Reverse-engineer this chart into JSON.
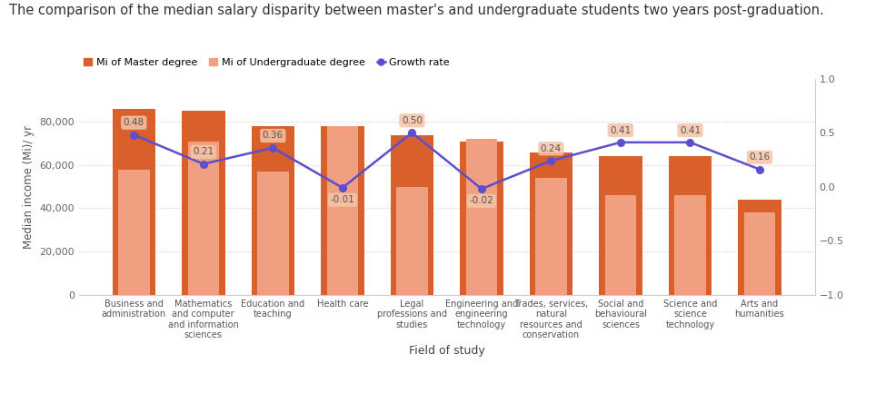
{
  "title": "The comparison of the median salary disparity between master's and undergraduate students two years post-graduation.",
  "categories": [
    "Business and\nadministration",
    "Mathematics\nand computer\nand information\nsciences",
    "Education and\nteaching",
    "Health care",
    "Legal\nprofessions and\nstudies",
    "Engineering and\nengineering\ntechnology",
    "Trades, services,\nnatural\nresources and\nconservation",
    "Social and\nbehavioural\nsciences",
    "Science and\nscience\ntechnology",
    "Arts and\nhumanities"
  ],
  "master_values": [
    86000,
    85000,
    78000,
    78000,
    74000,
    71000,
    66000,
    64000,
    64000,
    44000
  ],
  "undergrad_values": [
    58000,
    71000,
    57000,
    78000,
    50000,
    72000,
    54000,
    46000,
    46000,
    38000
  ],
  "growth_rates": [
    0.48,
    0.21,
    0.36,
    -0.01,
    0.5,
    -0.02,
    0.24,
    0.41,
    0.41,
    0.16
  ],
  "master_color": "#d95f2b",
  "undergrad_color": "#f0a080",
  "growth_color": "#5b4fcf",
  "xlabel": "Field of study",
  "ylabel": "Median income (Mi)/ yr",
  "ylim_left": [
    0,
    100000
  ],
  "ylim_right": [
    -1.0,
    1.0
  ],
  "yticks_left": [
    0,
    20000,
    40000,
    60000,
    80000
  ],
  "yticks_right": [
    -1.0,
    -0.5,
    0.0,
    0.5,
    1.0
  ],
  "background_color": "#ffffff",
  "title_fontsize": 10.5,
  "legend_labels": [
    "Mi of Master degree",
    "Mi of Undergraduate degree",
    "Growth rate"
  ]
}
